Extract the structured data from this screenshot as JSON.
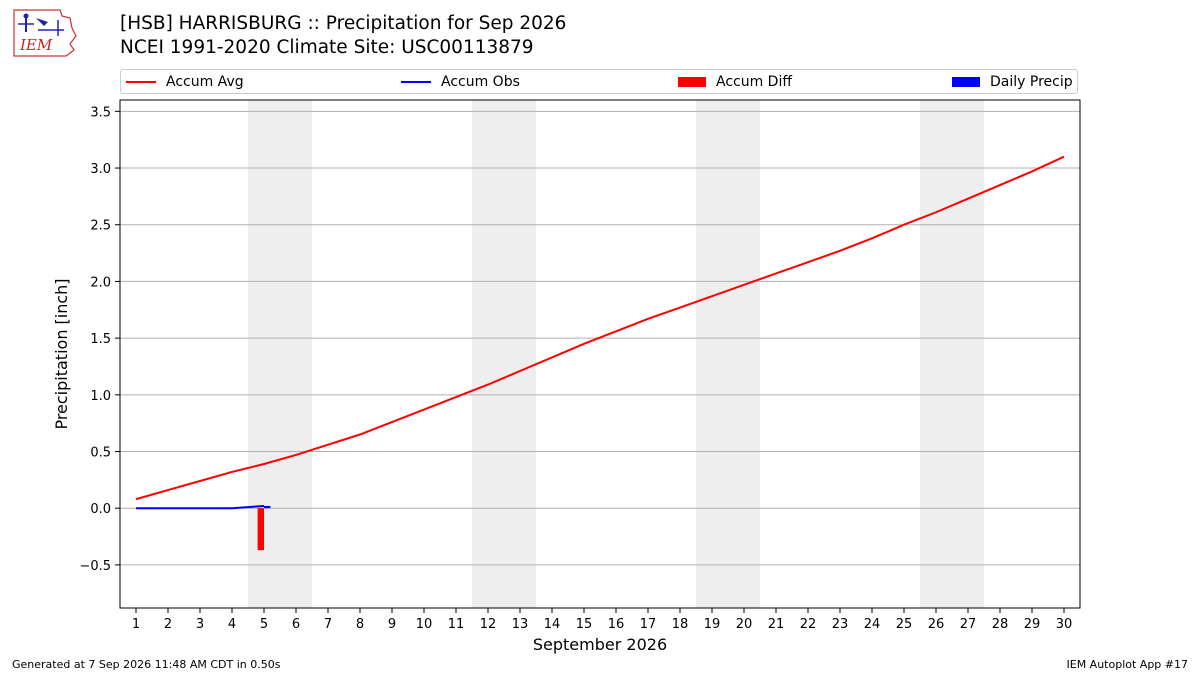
{
  "header": {
    "title": "[HSB] HARRISBURG :: Precipitation for Sep 2026",
    "subtitle": "NCEI 1991-2020 Climate Site: USC00113879",
    "logo_text": "IEM"
  },
  "footer": {
    "left": "Generated at 7 Sep 2026 11:48 AM CDT in 0.50s",
    "right": "IEM Autoplot App #17"
  },
  "colors": {
    "avg": "#ff0000",
    "obs": "#0000ff",
    "diff": "#ff0000",
    "daily": "#0000ff",
    "weekend": "#eeeeee",
    "grid": "#b0b0b0"
  },
  "chart_data": {
    "type": "line",
    "xlabel": "September 2026",
    "ylabel": "Precipitation [inch]",
    "xlim": [
      0.5,
      30.5
    ],
    "ylim": [
      -0.88,
      3.6
    ],
    "yticks": [
      -0.5,
      0.0,
      0.5,
      1.0,
      1.5,
      2.0,
      2.5,
      3.0,
      3.5
    ],
    "ytick_labels": [
      "−0.5",
      "0.0",
      "0.5",
      "1.0",
      "1.5",
      "2.0",
      "2.5",
      "3.0",
      "3.5"
    ],
    "x": [
      1,
      2,
      3,
      4,
      5,
      6,
      7,
      8,
      9,
      10,
      11,
      12,
      13,
      14,
      15,
      16,
      17,
      18,
      19,
      20,
      21,
      22,
      23,
      24,
      25,
      26,
      27,
      28,
      29,
      30
    ],
    "grid": "horizontal",
    "weekend_bands": [
      [
        4.5,
        6.5
      ],
      [
        11.5,
        13.5
      ],
      [
        18.5,
        20.5
      ],
      [
        25.5,
        27.5
      ]
    ],
    "legend": {
      "placement": "top",
      "entries": [
        "Accum Avg",
        "Accum Obs",
        "Accum Diff",
        "Daily Precip"
      ]
    },
    "series": [
      {
        "name": "Accum Avg",
        "kind": "line",
        "values": [
          0.08,
          0.16,
          0.24,
          0.32,
          0.39,
          0.47,
          0.56,
          0.65,
          0.76,
          0.87,
          0.98,
          1.09,
          1.21,
          1.33,
          1.45,
          1.56,
          1.67,
          1.77,
          1.87,
          1.97,
          2.07,
          2.17,
          2.27,
          2.38,
          2.5,
          2.61,
          2.73,
          2.85,
          2.97,
          3.1
        ]
      },
      {
        "name": "Accum Obs",
        "kind": "line",
        "x": [
          1,
          2,
          3,
          4,
          5
        ],
        "values": [
          0,
          0,
          0,
          0,
          0.02
        ]
      },
      {
        "name": "Accum Diff",
        "kind": "bar",
        "x": [
          5
        ],
        "values": [
          -0.37
        ]
      },
      {
        "name": "Daily Precip",
        "kind": "bar",
        "x": [
          5
        ],
        "values": [
          0.02
        ]
      }
    ]
  }
}
